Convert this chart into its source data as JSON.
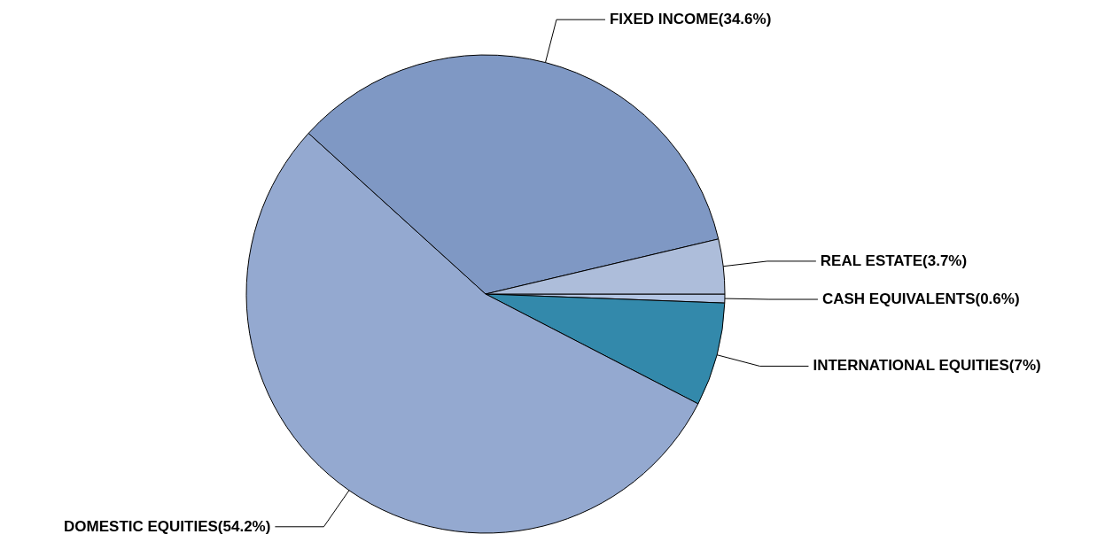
{
  "chart_data": {
    "type": "pie",
    "categories": [
      "CASH EQUIVALENTS",
      "INTERNATIONAL EQUITIES",
      "DOMESTIC EQUITIES",
      "FIXED INCOME",
      "REAL ESTATE"
    ],
    "values": [
      0.6,
      7,
      54.2,
      34.6,
      3.7
    ],
    "value_labels": [
      "(0.6%)",
      "(7%)",
      "(54.2%)",
      "(34.6%)",
      "(3.7%)"
    ],
    "colors": [
      "#b4c6e4",
      "#3389ab",
      "#94a9d0",
      "#7f98c4",
      "#adbdda"
    ],
    "legend": false
  }
}
